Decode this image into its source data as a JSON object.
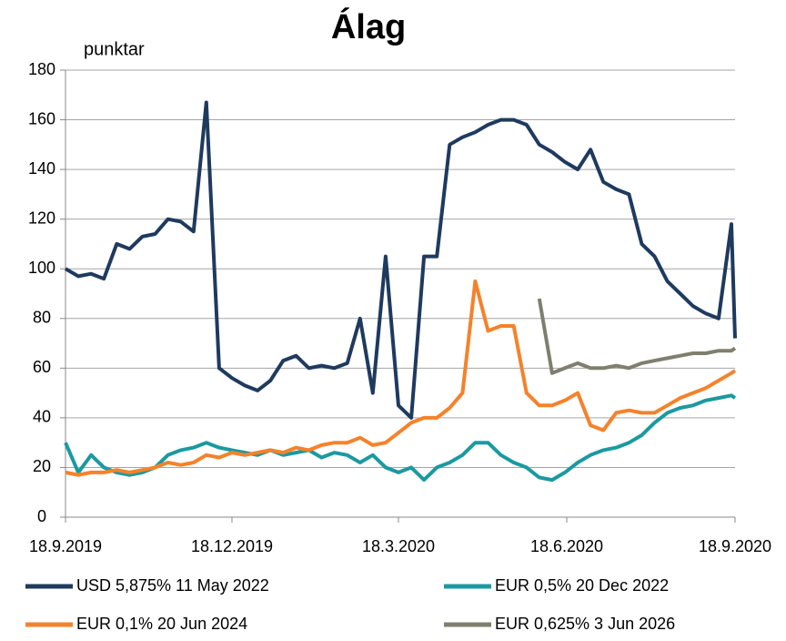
{
  "chart_data": {
    "type": "line",
    "title": "Álag",
    "ylabel": "punktar",
    "x": [
      "18.9.2019",
      "25.9.2019",
      "2.10.2019",
      "9.10.2019",
      "16.10.2019",
      "23.10.2019",
      "30.10.2019",
      "6.11.2019",
      "13.11.2019",
      "20.11.2019",
      "27.11.2019",
      "4.12.2019",
      "11.12.2019",
      "18.12.2019",
      "25.12.2019",
      "1.1.2020",
      "8.1.2020",
      "15.1.2020",
      "22.1.2020",
      "29.1.2020",
      "5.2.2020",
      "12.2.2020",
      "19.2.2020",
      "26.2.2020",
      "4.3.2020",
      "11.3.2020",
      "18.3.2020",
      "25.3.2020",
      "1.4.2020",
      "8.4.2020",
      "15.4.2020",
      "22.4.2020",
      "29.4.2020",
      "6.5.2020",
      "13.5.2020",
      "20.5.2020",
      "27.5.2020",
      "3.6.2020",
      "10.6.2020",
      "17.6.2020",
      "24.6.2020",
      "1.7.2020",
      "8.7.2020",
      "15.7.2020",
      "22.7.2020",
      "29.7.2020",
      "5.8.2020",
      "12.8.2020",
      "19.8.2020",
      "26.8.2020",
      "2.9.2020",
      "9.9.2020",
      "16.9.2020",
      "18.9.2020"
    ],
    "series": [
      {
        "name": "USD 5,875% 11 May 2022",
        "color": "#1f3a5f",
        "values": [
          100,
          97,
          98,
          96,
          110,
          108,
          113,
          114,
          120,
          119,
          115,
          167,
          60,
          56,
          53,
          51,
          55,
          63,
          65,
          60,
          61,
          60,
          62,
          80,
          50,
          105,
          45,
          40,
          105,
          105,
          150,
          153,
          155,
          158,
          160,
          160,
          158,
          150,
          147,
          143,
          140,
          148,
          135,
          132,
          130,
          110,
          105,
          95,
          90,
          85,
          82,
          80,
          118,
          72
        ]
      },
      {
        "name": "EUR 0,5% 20 Dec 2022",
        "color": "#1a9aa0",
        "values": [
          30,
          18,
          25,
          20,
          18,
          17,
          18,
          20,
          25,
          27,
          28,
          30,
          28,
          27,
          26,
          25,
          27,
          25,
          26,
          27,
          24,
          26,
          25,
          22,
          25,
          20,
          18,
          20,
          15,
          20,
          22,
          25,
          30,
          30,
          25,
          22,
          20,
          16,
          15,
          18,
          22,
          25,
          27,
          28,
          30,
          33,
          38,
          42,
          44,
          45,
          47,
          48,
          49,
          48
        ]
      },
      {
        "name": "EUR 0,1% 20 Jun 2024",
        "color": "#f5822a",
        "values": [
          18,
          17,
          18,
          18,
          19,
          18,
          19,
          20,
          22,
          21,
          22,
          25,
          24,
          26,
          25,
          26,
          27,
          26,
          28,
          27,
          29,
          30,
          30,
          32,
          29,
          30,
          34,
          38,
          40,
          40,
          44,
          50,
          95,
          75,
          77,
          77,
          50,
          45,
          45,
          47,
          50,
          37,
          35,
          42,
          43,
          42,
          42,
          45,
          48,
          50,
          52,
          55,
          58,
          59
        ]
      },
      {
        "name": "EUR 0,625% 3 Jun 2026",
        "color": "#7f7f70",
        "values": [
          null,
          null,
          null,
          null,
          null,
          null,
          null,
          null,
          null,
          null,
          null,
          null,
          null,
          null,
          null,
          null,
          null,
          null,
          null,
          null,
          null,
          null,
          null,
          null,
          null,
          null,
          null,
          null,
          null,
          null,
          null,
          null,
          null,
          null,
          null,
          null,
          null,
          88,
          58,
          60,
          62,
          60,
          60,
          61,
          60,
          62,
          63,
          64,
          65,
          66,
          66,
          67,
          67,
          68
        ]
      }
    ],
    "xlim": [
      "18.9.2019",
      "18.9.2020"
    ],
    "xticks": [
      "18.9.2019",
      "18.12.2019",
      "18.3.2020",
      "18.6.2020",
      "18.9.2020"
    ],
    "ylim": [
      0,
      180
    ],
    "yticks": [
      0,
      20,
      40,
      60,
      80,
      100,
      120,
      140,
      160,
      180
    ],
    "grid": true
  }
}
